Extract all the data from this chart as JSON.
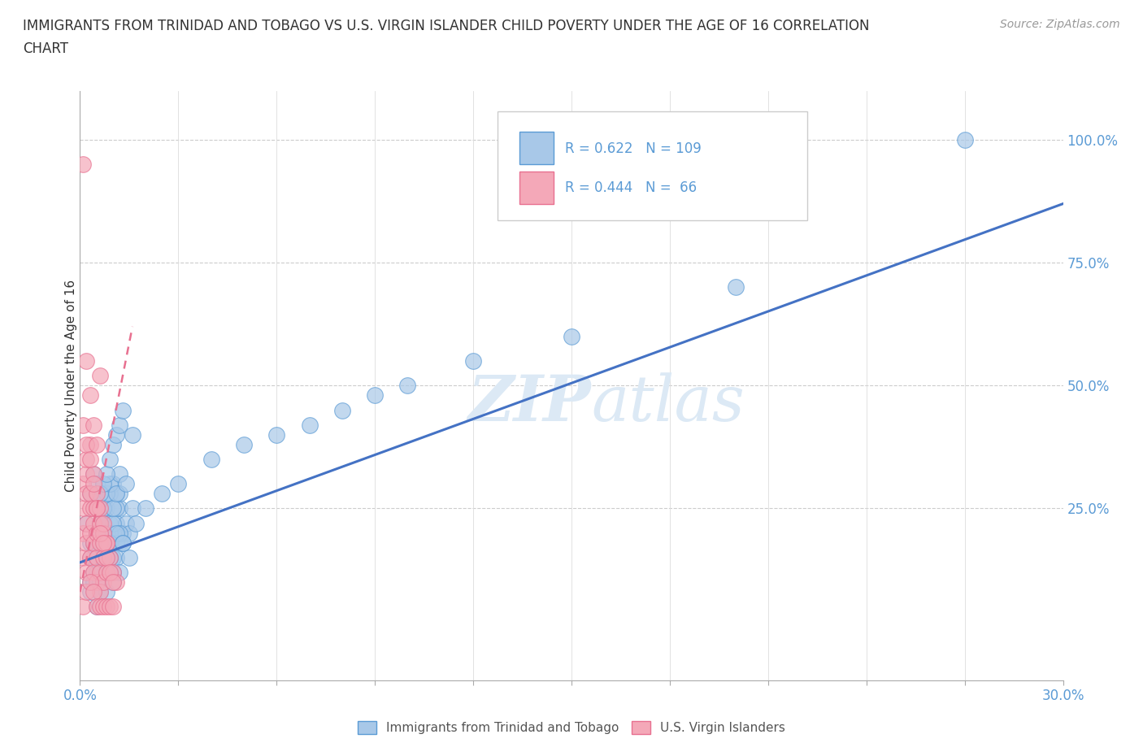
{
  "title_line1": "IMMIGRANTS FROM TRINIDAD AND TOBAGO VS U.S. VIRGIN ISLANDER CHILD POVERTY UNDER THE AGE OF 16 CORRELATION",
  "title_line2": "CHART",
  "source_text": "Source: ZipAtlas.com",
  "ylabel": "Child Poverty Under the Age of 16",
  "xlim": [
    0.0,
    0.3
  ],
  "ylim": [
    -0.1,
    1.1
  ],
  "ytick_positions": [
    0.25,
    0.5,
    0.75,
    1.0
  ],
  "ytick_labels": [
    "25.0%",
    "50.0%",
    "75.0%",
    "100.0%"
  ],
  "r_blue": 0.622,
  "n_blue": 109,
  "r_pink": 0.444,
  "n_pink": 66,
  "blue_color": "#A8C8E8",
  "pink_color": "#F4A8B8",
  "blue_edge_color": "#5B9BD5",
  "pink_edge_color": "#E87090",
  "blue_line_color": "#4472C4",
  "pink_line_color": "#E87090",
  "watermark_color": "#DCE9F5",
  "legend_blue_label": "Immigrants from Trinidad and Tobago",
  "legend_pink_label": "U.S. Virgin Islanders",
  "background_color": "#FFFFFF",
  "blue_trend_x0": 0.0,
  "blue_trend_y0": 0.14,
  "blue_trend_x1": 0.3,
  "blue_trend_y1": 0.87,
  "pink_trend_x0": 0.0,
  "pink_trend_y0": 0.08,
  "pink_trend_x1": 0.016,
  "pink_trend_y1": 0.62,
  "blue_scatter_x": [
    0.002,
    0.003,
    0.003,
    0.004,
    0.004,
    0.004,
    0.005,
    0.005,
    0.006,
    0.006,
    0.006,
    0.007,
    0.007,
    0.007,
    0.008,
    0.008,
    0.008,
    0.009,
    0.009,
    0.01,
    0.01,
    0.011,
    0.011,
    0.012,
    0.012,
    0.013,
    0.014,
    0.015,
    0.016,
    0.017,
    0.003,
    0.004,
    0.005,
    0.006,
    0.007,
    0.008,
    0.009,
    0.01,
    0.011,
    0.012,
    0.003,
    0.004,
    0.005,
    0.006,
    0.007,
    0.008,
    0.009,
    0.01,
    0.011,
    0.012,
    0.003,
    0.004,
    0.005,
    0.006,
    0.007,
    0.008,
    0.009,
    0.01,
    0.011,
    0.013,
    0.004,
    0.005,
    0.006,
    0.007,
    0.008,
    0.009,
    0.01,
    0.011,
    0.012,
    0.014,
    0.005,
    0.006,
    0.007,
    0.008,
    0.009,
    0.01,
    0.011,
    0.012,
    0.013,
    0.015,
    0.005,
    0.006,
    0.007,
    0.008,
    0.009,
    0.01,
    0.011,
    0.012,
    0.013,
    0.016,
    0.006,
    0.007,
    0.008,
    0.009,
    0.01,
    0.02,
    0.025,
    0.03,
    0.04,
    0.05,
    0.06,
    0.07,
    0.08,
    0.09,
    0.1,
    0.12,
    0.15,
    0.2,
    0.27
  ],
  "blue_scatter_y": [
    0.22,
    0.28,
    0.18,
    0.25,
    0.15,
    0.32,
    0.2,
    0.3,
    0.18,
    0.25,
    0.12,
    0.22,
    0.17,
    0.28,
    0.2,
    0.15,
    0.25,
    0.18,
    0.22,
    0.2,
    0.15,
    0.22,
    0.28,
    0.18,
    0.25,
    0.2,
    0.22,
    0.2,
    0.25,
    0.22,
    0.15,
    0.18,
    0.2,
    0.22,
    0.25,
    0.2,
    0.28,
    0.3,
    0.25,
    0.28,
    0.1,
    0.12,
    0.15,
    0.12,
    0.18,
    0.15,
    0.2,
    0.22,
    0.18,
    0.2,
    0.08,
    0.1,
    0.12,
    0.1,
    0.15,
    0.12,
    0.18,
    0.15,
    0.2,
    0.18,
    0.18,
    0.2,
    0.22,
    0.25,
    0.28,
    0.3,
    0.25,
    0.28,
    0.32,
    0.3,
    0.05,
    0.08,
    0.1,
    0.08,
    0.12,
    0.1,
    0.15,
    0.12,
    0.18,
    0.15,
    0.25,
    0.28,
    0.3,
    0.32,
    0.35,
    0.38,
    0.4,
    0.42,
    0.45,
    0.4,
    0.22,
    0.2,
    0.18,
    0.15,
    0.12,
    0.25,
    0.28,
    0.3,
    0.35,
    0.38,
    0.4,
    0.42,
    0.45,
    0.48,
    0.5,
    0.55,
    0.6,
    0.7,
    1.0
  ],
  "pink_scatter_x": [
    0.001,
    0.001,
    0.001,
    0.001,
    0.002,
    0.002,
    0.002,
    0.002,
    0.002,
    0.003,
    0.003,
    0.003,
    0.003,
    0.004,
    0.004,
    0.004,
    0.004,
    0.005,
    0.005,
    0.005,
    0.005,
    0.006,
    0.006,
    0.006,
    0.006,
    0.007,
    0.007,
    0.007,
    0.008,
    0.008,
    0.002,
    0.003,
    0.004,
    0.005,
    0.006,
    0.007,
    0.008,
    0.009,
    0.01,
    0.011,
    0.001,
    0.002,
    0.003,
    0.004,
    0.005,
    0.006,
    0.007,
    0.008,
    0.009,
    0.01,
    0.001,
    0.002,
    0.003,
    0.004,
    0.005,
    0.006,
    0.007,
    0.008,
    0.009,
    0.01,
    0.001,
    0.002,
    0.003,
    0.004,
    0.005,
    0.006
  ],
  "pink_scatter_y": [
    0.2,
    0.25,
    0.15,
    0.3,
    0.22,
    0.18,
    0.28,
    0.12,
    0.32,
    0.25,
    0.2,
    0.15,
    0.28,
    0.22,
    0.18,
    0.12,
    0.25,
    0.2,
    0.15,
    0.25,
    0.1,
    0.18,
    0.12,
    0.22,
    0.08,
    0.15,
    0.1,
    0.2,
    0.12,
    0.18,
    0.35,
    0.38,
    0.32,
    0.28,
    0.25,
    0.22,
    0.18,
    0.15,
    0.12,
    0.1,
    0.42,
    0.38,
    0.35,
    0.3,
    0.25,
    0.2,
    0.18,
    0.15,
    0.12,
    0.1,
    0.05,
    0.08,
    0.1,
    0.08,
    0.05,
    0.05,
    0.05,
    0.05,
    0.05,
    0.05,
    0.95,
    0.55,
    0.48,
    0.42,
    0.38,
    0.52
  ]
}
